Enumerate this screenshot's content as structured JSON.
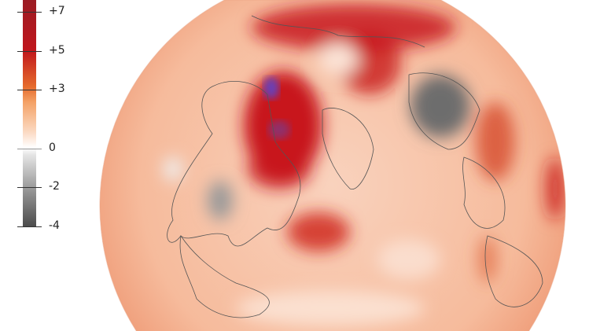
{
  "legend": {
    "ticks": [
      {
        "label": "+7",
        "value": 7
      },
      {
        "label": "+5",
        "value": 5
      },
      {
        "label": "+3",
        "value": 3
      },
      {
        "label": "0",
        "value": 0
      },
      {
        "label": "-2",
        "value": -2
      },
      {
        "label": "-4",
        "value": -4
      }
    ],
    "range": [
      -4,
      8
    ],
    "colors": {
      "high": "#9b1c24",
      "mid_warm": "#f4a266",
      "zero": "#ffffff",
      "low": "#4a4a4a"
    }
  },
  "map": {
    "projection": "orthographic-north-pole",
    "colors": {
      "base": "#f7c3a8",
      "hot": "#c8161d",
      "cold": "#6d6d6d",
      "extreme_hot": "#6a3fb5",
      "coast": "#555555"
    }
  }
}
